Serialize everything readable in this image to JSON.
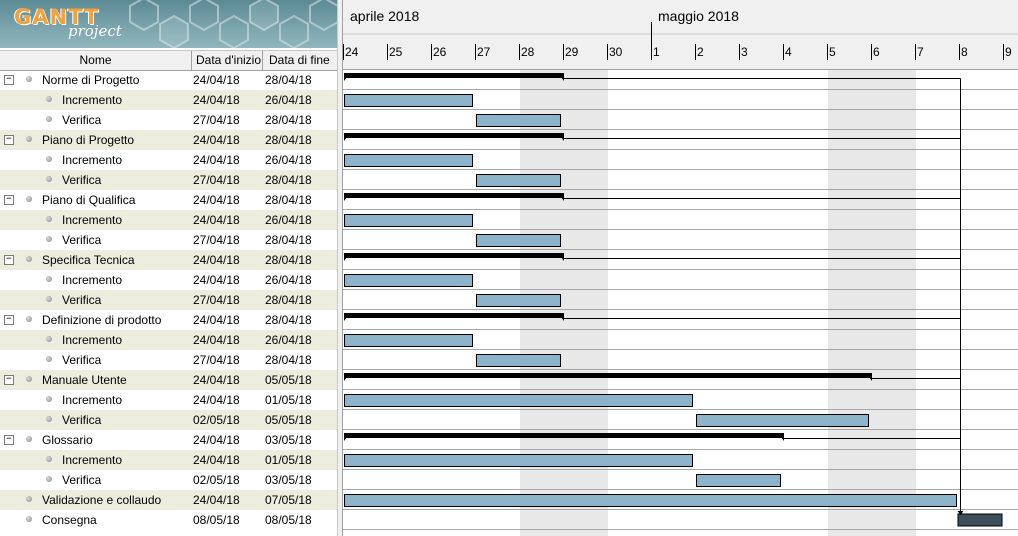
{
  "logo": {
    "mark": "GANTT",
    "sub": "project"
  },
  "columns": {
    "name": "Nome",
    "start": "Data d'inizio",
    "end": "Data di fine"
  },
  "timeline": {
    "months": [
      "aprile 2018",
      "maggio 2018"
    ],
    "days": [
      "24",
      "25",
      "26",
      "27",
      "28",
      "29",
      "30",
      "1",
      "2",
      "3",
      "4",
      "5",
      "6",
      "7",
      "8",
      "9"
    ]
  },
  "tasks": [
    {
      "name": "Norme di Progetto",
      "start": "24/04/18",
      "end": "28/04/18",
      "level": 0
    },
    {
      "name": "Incremento",
      "start": "24/04/18",
      "end": "26/04/18",
      "level": 1
    },
    {
      "name": "Verifica",
      "start": "27/04/18",
      "end": "28/04/18",
      "level": 1
    },
    {
      "name": "Piano di Progetto",
      "start": "24/04/18",
      "end": "28/04/18",
      "level": 0
    },
    {
      "name": "Incremento",
      "start": "24/04/18",
      "end": "26/04/18",
      "level": 1
    },
    {
      "name": "Verifica",
      "start": "27/04/18",
      "end": "28/04/18",
      "level": 1
    },
    {
      "name": "Piano di Qualifica",
      "start": "24/04/18",
      "end": "28/04/18",
      "level": 0
    },
    {
      "name": "Incremento",
      "start": "24/04/18",
      "end": "26/04/18",
      "level": 1
    },
    {
      "name": "Verifica",
      "start": "27/04/18",
      "end": "28/04/18",
      "level": 1
    },
    {
      "name": "Specifica Tecnica",
      "start": "24/04/18",
      "end": "28/04/18",
      "level": 0
    },
    {
      "name": "Incremento",
      "start": "24/04/18",
      "end": "26/04/18",
      "level": 1
    },
    {
      "name": "Verifica",
      "start": "27/04/18",
      "end": "28/04/18",
      "level": 1
    },
    {
      "name": "Definizione di prodotto",
      "start": "24/04/18",
      "end": "28/04/18",
      "level": 0
    },
    {
      "name": "Incremento",
      "start": "24/04/18",
      "end": "26/04/18",
      "level": 1
    },
    {
      "name": "Verifica",
      "start": "27/04/18",
      "end": "28/04/18",
      "level": 1
    },
    {
      "name": "Manuale Utente",
      "start": "24/04/18",
      "end": "05/05/18",
      "level": 0
    },
    {
      "name": "Incremento",
      "start": "24/04/18",
      "end": "01/05/18",
      "level": 1
    },
    {
      "name": "Verifica",
      "start": "02/05/18",
      "end": "05/05/18",
      "level": 1
    },
    {
      "name": "Glossario",
      "start": "24/04/18",
      "end": "03/05/18",
      "level": 0
    },
    {
      "name": "Incremento",
      "start": "24/04/18",
      "end": "01/05/18",
      "level": 1
    },
    {
      "name": "Verifica",
      "start": "02/05/18",
      "end": "03/05/18",
      "level": 1
    },
    {
      "name": "Validazione e collaudo",
      "start": "24/04/18",
      "end": "07/05/18",
      "level": "task"
    },
    {
      "name": "Consegna",
      "start": "08/05/18",
      "end": "08/05/18",
      "level": "task"
    }
  ],
  "colors": {
    "bar": "#8db3ca",
    "summary": "#000000",
    "weekend": "#e8e8e8",
    "milestone": "#3d4f5c",
    "row_alt": "#ecedde"
  }
}
